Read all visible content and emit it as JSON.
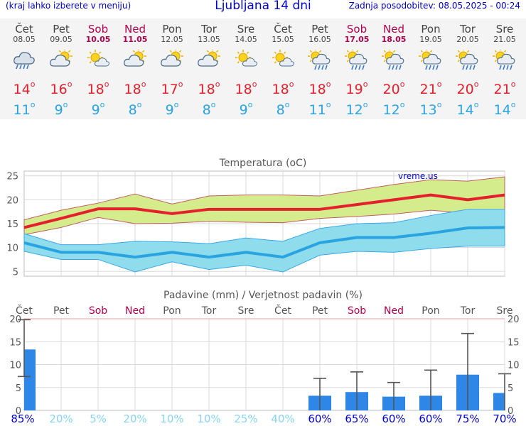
{
  "header": {
    "left_note": "(kraj lahko izberete v meniju)",
    "title": "Ljubljana 14 dni",
    "updated": "Zadnja posodobitev: 08.05.2025 - 00:24"
  },
  "days": [
    {
      "name": "Čet",
      "date": "08.05",
      "weekend": false,
      "icon": "cloud-rain-icon",
      "tmax": "14",
      "tmin": "11"
    },
    {
      "name": "Pet",
      "date": "09.05",
      "weekend": false,
      "icon": "sun-cloud-icon",
      "tmax": "16",
      "tmin": "9"
    },
    {
      "name": "Sob",
      "date": "10.05",
      "weekend": true,
      "icon": "sun-small-cloud-icon",
      "tmax": "18",
      "tmin": "9"
    },
    {
      "name": "Ned",
      "date": "11.05",
      "weekend": true,
      "icon": "sun-cloud-icon",
      "tmax": "18",
      "tmin": "8"
    },
    {
      "name": "Pon",
      "date": "12.05",
      "weekend": false,
      "icon": "sun-cloud-icon",
      "tmax": "17",
      "tmin": "9"
    },
    {
      "name": "Tor",
      "date": "13.05",
      "weekend": false,
      "icon": "sun-cloud-icon",
      "tmax": "18",
      "tmin": "8"
    },
    {
      "name": "Sre",
      "date": "14.05",
      "weekend": false,
      "icon": "sun-small-cloud-icon",
      "tmax": "18",
      "tmin": "9"
    },
    {
      "name": "Čet",
      "date": "15.05",
      "weekend": false,
      "icon": "sun-small-cloud-icon",
      "tmax": "18",
      "tmin": "8"
    },
    {
      "name": "Pet",
      "date": "16.05",
      "weekend": false,
      "icon": "sun-rain-icon",
      "tmax": "18",
      "tmin": "11"
    },
    {
      "name": "Sob",
      "date": "17.05",
      "weekend": true,
      "icon": "sun-rain-icon",
      "tmax": "19",
      "tmin": "12"
    },
    {
      "name": "Ned",
      "date": "18.05",
      "weekend": true,
      "icon": "sun-rain-icon",
      "tmax": "20",
      "tmin": "12"
    },
    {
      "name": "Pon",
      "date": "19.05",
      "weekend": false,
      "icon": "sun-rain-icon",
      "tmax": "21",
      "tmin": "13"
    },
    {
      "name": "Tor",
      "date": "20.05",
      "weekend": false,
      "icon": "sun-rain-icon",
      "tmax": "20",
      "tmin": "14"
    },
    {
      "name": "Sre",
      "date": "21.05",
      "weekend": false,
      "icon": "sun-rain-icon",
      "tmax": "21",
      "tmin": "14"
    }
  ],
  "degree_symbol": "o",
  "colors": {
    "tmax": "#e3202c",
    "tmin": "#2aa4e0",
    "weekend": "#b3004d",
    "bar": "#2e86e6",
    "max_band": "#d4ec8c",
    "min_band": "#8fdcec"
  },
  "chart_data": [
    {
      "type": "line",
      "title": "Temperatura (oC)",
      "watermark": "vreme.us",
      "ylim": [
        4,
        26
      ],
      "yticks": [
        "5",
        "10",
        "15",
        "20",
        "25"
      ],
      "series": [
        {
          "values": [
            14.2,
            16.1,
            18.1,
            18.1,
            17.1,
            18.0,
            18.0,
            18.0,
            18.0,
            19.0,
            20.0,
            21.0,
            20.0,
            21.0
          ]
        },
        {
          "values": [
            15.8,
            17.8,
            19.3,
            21.2,
            19.1,
            20.8,
            21.0,
            21.0,
            20.8,
            22.0,
            23.2,
            24.2,
            23.9,
            24.8
          ]
        },
        {
          "values": [
            12.7,
            14.2,
            16.3,
            15.0,
            15.1,
            15.5,
            15.3,
            15.2,
            16.1,
            16.5,
            17.0,
            17.8,
            17.2,
            17.6
          ]
        },
        {
          "values": [
            11.0,
            9.0,
            9.0,
            8.0,
            9.0,
            8.0,
            9.0,
            8.0,
            11.0,
            12.1,
            12.1,
            13.0,
            14.1,
            14.2
          ]
        },
        {
          "values": [
            12.9,
            10.6,
            10.6,
            11.3,
            11.2,
            10.8,
            12.0,
            11.3,
            14.0,
            15.0,
            15.2,
            16.7,
            18.0,
            18.0
          ]
        },
        {
          "values": [
            9.2,
            7.5,
            7.5,
            4.9,
            7.0,
            5.4,
            6.3,
            4.9,
            8.4,
            9.2,
            9.0,
            9.8,
            10.3,
            10.3
          ]
        }
      ]
    },
    {
      "type": "bar",
      "title": "Padavine (mm) / Verjetnost padavin (%)",
      "ylim": [
        0,
        20
      ],
      "yticks": [
        "0",
        "5",
        "10",
        "15",
        "20"
      ],
      "values": [
        13.3,
        0,
        0,
        0,
        0,
        0,
        0,
        0,
        3.2,
        4.0,
        3.0,
        3.2,
        7.8,
        3.8
      ],
      "err_low": [
        7.4,
        0,
        0,
        0,
        0,
        0,
        0,
        0,
        0,
        0,
        0,
        0,
        0,
        0
      ],
      "err_high": [
        19.8,
        0,
        0,
        0,
        0,
        0,
        0,
        0,
        7.0,
        8.4,
        6.1,
        8.8,
        16.8,
        8.0
      ],
      "probability": [
        "85%",
        "20%",
        "5%",
        "20%",
        "10%",
        "10%",
        "25%",
        "40%",
        "60%",
        "65%",
        "60%",
        "60%",
        "75%",
        "70%"
      ],
      "probability_colors": [
        "#0000cc",
        "#88d4f0",
        "#88d4f0",
        "#88d4f0",
        "#88d4f0",
        "#88d4f0",
        "#88d4f0",
        "#88d4f0",
        "#0000cc",
        "#0000cc",
        "#0000cc",
        "#0000cc",
        "#0000cc",
        "#0000cc"
      ]
    }
  ]
}
